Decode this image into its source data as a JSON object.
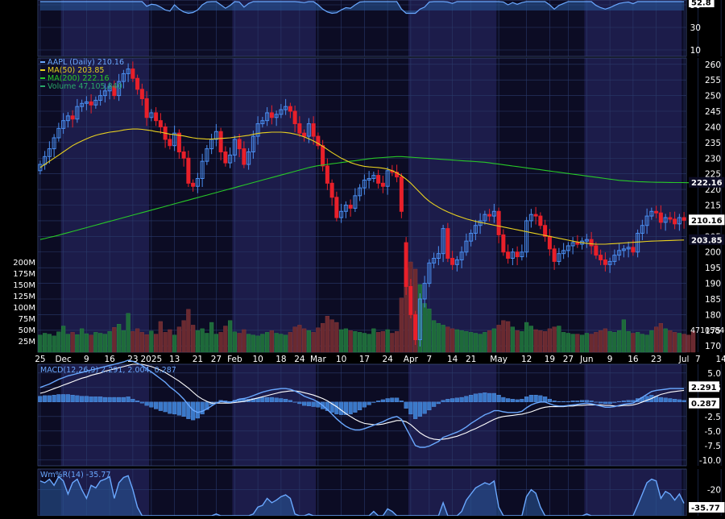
{
  "colors": {
    "background": "#000000",
    "plot_bg": "#0c0c24",
    "month_band": "#1c1c4a",
    "grid": "#2a3a6a",
    "axis_text": "#ffffff",
    "price_line": "#6aa8ff",
    "candle_up": "#4a8ef0",
    "candle_down": "#e8202a",
    "ma50": "#e8d020",
    "ma200": "#28c828",
    "volume_up": "#1e6a3a",
    "volume_down": "#6a2a30",
    "macd_line": "#6aa8ff",
    "signal_line": "#ffffff",
    "histogram": "#3a78c8",
    "label_box_bg": "#ffffff",
    "label_box_text": "#000000"
  },
  "x_axis": {
    "ticks": [
      {
        "i": 0,
        "label": "25"
      },
      {
        "i": 5,
        "label": "Dec"
      },
      {
        "i": 10,
        "label": "9"
      },
      {
        "i": 15,
        "label": "16"
      },
      {
        "i": 20,
        "label": "23"
      },
      {
        "i": 24,
        "label": "2025"
      },
      {
        "i": 29,
        "label": "13"
      },
      {
        "i": 34,
        "label": "21"
      },
      {
        "i": 38,
        "label": "27"
      },
      {
        "i": 42,
        "label": "Feb"
      },
      {
        "i": 47,
        "label": "10"
      },
      {
        "i": 52,
        "label": "18"
      },
      {
        "i": 56,
        "label": "24"
      },
      {
        "i": 60,
        "label": "Mar"
      },
      {
        "i": 65,
        "label": "10"
      },
      {
        "i": 70,
        "label": "17"
      },
      {
        "i": 75,
        "label": "24"
      },
      {
        "i": 80,
        "label": "Apr"
      },
      {
        "i": 84,
        "label": "7"
      },
      {
        "i": 89,
        "label": "14"
      },
      {
        "i": 93,
        "label": "21"
      },
      {
        "i": 99,
        "label": "May"
      },
      {
        "i": 105,
        "label": "12"
      },
      {
        "i": 110,
        "label": "19"
      },
      {
        "i": 114,
        "label": "27"
      },
      {
        "i": 118,
        "label": "Jun"
      },
      {
        "i": 123,
        "label": "9"
      },
      {
        "i": 128,
        "label": "16"
      },
      {
        "i": 133,
        "label": "23"
      },
      {
        "i": 139,
        "label": "Jul"
      },
      {
        "i": 142,
        "label": "7"
      },
      {
        "i": 147,
        "label": "14"
      }
    ],
    "month_bands": [
      [
        5,
        23
      ],
      [
        42,
        59
      ],
      [
        80,
        98
      ],
      [
        118,
        138
      ]
    ]
  },
  "top_panel": {
    "ticks": [
      "50",
      "30",
      "10"
    ],
    "last_label": "52.8"
  },
  "price_panel": {
    "legend": [
      {
        "text": "AAPL (Daily) 210.16",
        "color": "#6aa8ff"
      },
      {
        "text": "MA(50) 203.85",
        "color": "#e8d020"
      },
      {
        "text": "MA(200) 222.16",
        "color": "#28c828"
      },
      {
        "text": "Volume 47,105,840",
        "color": "#2aa86a"
      }
    ],
    "ticks": [
      "260",
      "255",
      "250",
      "245",
      "240",
      "235",
      "230",
      "225",
      "220",
      "215",
      "210",
      "205",
      "200",
      "195",
      "190",
      "185",
      "180",
      "175",
      "170"
    ],
    "last_price_label": "210.16",
    "ma200_label": "222.16",
    "ma50_label": "203.85",
    "volume_label": "47105840",
    "volume_ticks": [
      "200M",
      "175M",
      "150M",
      "125M",
      "100M",
      "75M",
      "50M",
      "25M"
    ]
  },
  "macd_panel": {
    "legend": "MACD(12,26,9) 2.291, 2.004, 0.287",
    "ticks": [
      "5.0",
      "2.5",
      "-2.5",
      "-5.0",
      "-7.5",
      "-10.0"
    ],
    "macd_label": "2.291",
    "hist_label": "0.287"
  },
  "willr_panel": {
    "legend": "Wm%R(14) -35.77",
    "ticks": [
      "-20"
    ],
    "last_label": "-35.77"
  },
  "chart_data": {
    "type": "candlestick",
    "symbol": "AAPL",
    "period": "Daily",
    "title": "AAPL (Daily) 210.16",
    "ylim": [
      168,
      262
    ],
    "close": [
      228.0,
      230.5,
      233.0,
      236.5,
      239.5,
      242.0,
      243.5,
      242.5,
      246.5,
      247.5,
      248.0,
      247.0,
      248.5,
      250.0,
      251.5,
      253.0,
      250.0,
      254.5,
      257.0,
      258.5,
      255.5,
      252.0,
      249.0,
      243.0,
      244.5,
      242.0,
      240.0,
      236.0,
      234.0,
      238.0,
      232.0,
      230.0,
      222.0,
      221.0,
      223.5,
      229.0,
      233.0,
      236.0,
      238.5,
      232.0,
      228.5,
      231.0,
      236.0,
      233.0,
      228.0,
      232.0,
      237.0,
      241.0,
      242.0,
      244.5,
      243.0,
      244.0,
      245.5,
      246.5,
      245.0,
      241.0,
      238.0,
      237.0,
      241.0,
      237.0,
      234.0,
      227.5,
      222.0,
      217.5,
      211.0,
      213.0,
      215.0,
      214.0,
      218.0,
      220.5,
      223.0,
      223.5,
      224.5,
      222.0,
      221.0,
      226.0,
      225.5,
      224.0,
      213.0,
      189.0,
      180.0,
      172.0,
      185.0,
      190.0,
      196.5,
      198.0,
      199.5,
      207.5,
      198.0,
      196.0,
      197.5,
      200.0,
      203.5,
      206.0,
      208.5,
      210.0,
      212.0,
      211.5,
      213.0,
      205.5,
      200.0,
      198.0,
      200.0,
      198.5,
      200.0,
      210.0,
      212.0,
      211.5,
      208.5,
      205.0,
      201.0,
      197.0,
      199.5,
      200.5,
      202.0,
      203.0,
      202.5,
      203.5,
      204.0,
      202.0,
      199.0,
      197.5,
      196.0,
      197.0,
      199.0,
      200.5,
      201.0,
      201.5,
      200.0,
      206.0,
      208.5,
      211.5,
      213.0,
      212.5,
      209.5,
      211.0,
      210.5,
      209.0,
      211.0,
      210.16
    ],
    "open": [
      226.0,
      228.0,
      230.5,
      233.0,
      236.5,
      239.5,
      242.0,
      243.5,
      242.5,
      246.5,
      247.5,
      248.0,
      247.0,
      248.5,
      250.0,
      251.5,
      253.0,
      250.0,
      254.5,
      257.0,
      258.5,
      255.5,
      252.0,
      249.0,
      243.0,
      244.5,
      242.0,
      240.0,
      236.0,
      234.0,
      238.0,
      232.0,
      230.0,
      222.0,
      221.0,
      223.5,
      229.0,
      233.0,
      236.0,
      238.5,
      232.0,
      228.5,
      231.0,
      236.0,
      233.0,
      228.0,
      232.0,
      237.0,
      241.0,
      242.0,
      244.5,
      243.0,
      244.0,
      245.5,
      246.5,
      245.0,
      241.0,
      238.0,
      237.0,
      241.0,
      237.0,
      234.0,
      227.5,
      222.0,
      217.5,
      211.0,
      213.0,
      215.0,
      214.0,
      218.0,
      220.5,
      223.0,
      223.5,
      224.5,
      222.0,
      221.0,
      226.0,
      225.5,
      224.0,
      203.0,
      189.0,
      180.0,
      172.0,
      185.0,
      190.0,
      196.5,
      198.0,
      199.5,
      207.5,
      198.0,
      196.0,
      197.5,
      200.0,
      203.5,
      206.0,
      208.5,
      210.0,
      212.0,
      211.5,
      213.0,
      205.5,
      200.0,
      198.0,
      200.0,
      198.5,
      200.0,
      210.0,
      212.0,
      211.5,
      208.5,
      205.0,
      201.0,
      197.0,
      199.5,
      200.5,
      202.0,
      203.0,
      202.5,
      203.5,
      204.0,
      202.0,
      199.0,
      197.5,
      196.0,
      197.0,
      199.0,
      200.5,
      201.0,
      201.5,
      200.0,
      206.0,
      208.5,
      211.5,
      213.0,
      212.5,
      209.5,
      211.0,
      210.5,
      209.0,
      211.0
    ],
    "ma50": [
      227,
      228,
      229,
      230,
      231,
      232,
      233,
      234,
      234.8,
      235.5,
      236.2,
      236.8,
      237.3,
      237.7,
      238,
      238.3,
      238.5,
      238.7,
      239,
      239.2,
      239.3,
      239.3,
      239.2,
      239,
      238.8,
      238.5,
      238.3,
      238,
      237.7,
      237.5,
      237.3,
      237.1,
      236.8,
      236.5,
      236.3,
      236.2,
      236.1,
      236.1,
      236.2,
      236.3,
      236.4,
      236.5,
      236.7,
      236.9,
      237.1,
      237.3,
      237.6,
      237.9,
      238.1,
      238.2,
      238.3,
      238.3,
      238.3,
      238.2,
      238,
      237.7,
      237.3,
      236.8,
      236.2,
      235.5,
      234.7,
      233.8,
      232.8,
      231.8,
      230.9,
      230,
      229.3,
      228.6,
      228.1,
      227.7,
      227.4,
      227.2,
      227.1,
      227,
      226.8,
      226.5,
      226,
      225.3,
      224.4,
      223.3,
      222,
      220.5,
      219,
      217.5,
      216.2,
      215.2,
      214.3,
      213.5,
      212.8,
      212.2,
      211.6,
      211.1,
      210.6,
      210.2,
      209.8,
      209.5,
      209.2,
      208.9,
      208.6,
      208.3,
      208,
      207.7,
      207.4,
      207.1,
      206.8,
      206.5,
      206.2,
      205.9,
      205.6,
      205.3,
      205,
      204.7,
      204.4,
      204.1,
      203.8,
      203.5,
      203.2,
      203,
      202.8,
      202.6,
      202.5,
      202.5,
      202.5,
      202.6,
      202.7,
      202.8,
      202.9,
      203,
      203.1,
      203.2,
      203.3,
      203.4,
      203.5,
      203.55,
      203.6,
      203.65,
      203.7,
      203.75,
      203.8,
      203.85
    ],
    "ma200": [
      204,
      204.3,
      204.7,
      205,
      205.4,
      205.8,
      206.2,
      206.6,
      207,
      207.4,
      207.8,
      208.2,
      208.6,
      209,
      209.4,
      209.8,
      210.2,
      210.6,
      211,
      211.4,
      211.8,
      212.2,
      212.6,
      213,
      213.4,
      213.8,
      214.2,
      214.6,
      215,
      215.4,
      215.8,
      216.2,
      216.6,
      217,
      217.4,
      217.8,
      218.2,
      218.6,
      219,
      219.4,
      219.8,
      220.2,
      220.6,
      221,
      221.4,
      221.8,
      222.2,
      222.6,
      223,
      223.4,
      223.8,
      224.2,
      224.6,
      225,
      225.4,
      225.8,
      226.2,
      226.6,
      227,
      227.3,
      227.6,
      227.8,
      228,
      228.2,
      228.4,
      228.6,
      228.8,
      229,
      229.2,
      229.4,
      229.6,
      229.8,
      230,
      230.1,
      230.2,
      230.3,
      230.4,
      230.5,
      230.5,
      230.4,
      230.3,
      230.2,
      230.1,
      230,
      229.9,
      229.8,
      229.7,
      229.6,
      229.5,
      229.4,
      229.3,
      229.2,
      229.1,
      229,
      228.9,
      228.8,
      228.7,
      228.5,
      228.3,
      228.1,
      227.9,
      227.7,
      227.5,
      227.3,
      227.1,
      226.9,
      226.7,
      226.5,
      226.3,
      226.1,
      225.9,
      225.7,
      225.5,
      225.3,
      225.1,
      224.9,
      224.7,
      224.5,
      224.3,
      224.1,
      223.9,
      223.7,
      223.5,
      223.3,
      223.1,
      222.9,
      222.8,
      222.7,
      222.6,
      222.5,
      222.45,
      222.4,
      222.35,
      222.3,
      222.28,
      222.26,
      222.24,
      222.22,
      222.2,
      222.18,
      222.17,
      222.16,
      222.16,
      222.16
    ],
    "volume_m": [
      38,
      42,
      40,
      36,
      45,
      58,
      40,
      44,
      39,
      52,
      41,
      38,
      44,
      42,
      40,
      46,
      55,
      62,
      48,
      86,
      46,
      52,
      44,
      39,
      47,
      40,
      68,
      44,
      50,
      38,
      56,
      70,
      95,
      60,
      48,
      52,
      42,
      66,
      40,
      44,
      58,
      70,
      45,
      42,
      50,
      40,
      38,
      36,
      40,
      44,
      48,
      42,
      40,
      38,
      44,
      56,
      60,
      52,
      48,
      44,
      54,
      64,
      80,
      72,
      66,
      50,
      52,
      48,
      46,
      44,
      42,
      40,
      52,
      44,
      46,
      50,
      42,
      46,
      120,
      186,
      200,
      184,
      150,
      108,
      96,
      70,
      64,
      60,
      56,
      52,
      50,
      48,
      46,
      44,
      42,
      40,
      44,
      48,
      52,
      60,
      70,
      68,
      56,
      48,
      46,
      66,
      58,
      50,
      48,
      46,
      52,
      56,
      58,
      44,
      42,
      40,
      40,
      38,
      42,
      40,
      44,
      48,
      52,
      46,
      44,
      48,
      72,
      46,
      42,
      44,
      40,
      38,
      48,
      56,
      64,
      52,
      48,
      44,
      42,
      40,
      38,
      47.1
    ],
    "macd": [
      2.5,
      2.8,
      3.1,
      3.5,
      3.9,
      4.2,
      4.5,
      4.7,
      4.9,
      5.1,
      5.3,
      5.5,
      5.7,
      5.9,
      6.1,
      6.3,
      6.5,
      6.7,
      6.9,
      7.2,
      7.0,
      6.7,
      6.3,
      5.7,
      5.2,
      4.6,
      4.0,
      3.4,
      2.6,
      2.0,
      1.3,
      0.5,
      -0.5,
      -1.4,
      -1.8,
      -1.6,
      -1.2,
      -0.7,
      -0.2,
      0.1,
      0.0,
      -0.1,
      0.2,
      0.5,
      0.6,
      0.8,
      1.1,
      1.4,
      1.7,
      1.9,
      2.1,
      2.2,
      2.3,
      2.3,
      2.2,
      1.9,
      1.5,
      1.0,
      0.7,
      0.4,
      0.0,
      -0.6,
      -1.3,
      -2.1,
      -2.9,
      -3.6,
      -4.2,
      -4.6,
      -4.8,
      -4.8,
      -4.6,
      -4.3,
      -4.0,
      -3.7,
      -3.4,
      -3.0,
      -2.7,
      -2.5,
      -3.0,
      -4.5,
      -6.0,
      -7.5,
      -7.8,
      -7.8,
      -7.6,
      -7.2,
      -6.8,
      -6.1,
      -5.8,
      -5.5,
      -5.2,
      -4.8,
      -4.3,
      -3.7,
      -3.2,
      -2.7,
      -2.2,
      -1.9,
      -1.5,
      -1.5,
      -1.7,
      -1.8,
      -1.8,
      -1.8,
      -1.6,
      -1.0,
      -0.5,
      -0.2,
      0.0,
      0.0,
      -0.3,
      -0.6,
      -0.7,
      -0.7,
      -0.6,
      -0.5,
      -0.4,
      -0.3,
      -0.2,
      -0.3,
      -0.5,
      -0.7,
      -0.9,
      -0.9,
      -0.8,
      -0.6,
      -0.4,
      -0.3,
      -0.2,
      0.3,
      0.8,
      1.3,
      1.8,
      2.0,
      2.1,
      2.2,
      2.3,
      2.3,
      2.3,
      2.291
    ],
    "signal": [
      1.5,
      1.7,
      2.0,
      2.3,
      2.6,
      2.9,
      3.2,
      3.5,
      3.8,
      4.1,
      4.3,
      4.6,
      4.8,
      5.0,
      5.3,
      5.5,
      5.7,
      5.9,
      6.1,
      6.3,
      6.5,
      6.5,
      6.5,
      6.3,
      6.1,
      5.8,
      5.5,
      5.1,
      4.6,
      4.1,
      3.6,
      3.0,
      2.4,
      1.7,
      1.0,
      0.5,
      0.1,
      -0.2,
      -0.2,
      -0.2,
      -0.2,
      -0.2,
      -0.1,
      0.0,
      0.1,
      0.3,
      0.5,
      0.7,
      0.9,
      1.1,
      1.3,
      1.5,
      1.7,
      1.8,
      1.9,
      1.9,
      1.8,
      1.6,
      1.4,
      1.2,
      0.9,
      0.6,
      0.2,
      -0.3,
      -0.8,
      -1.4,
      -2.0,
      -2.5,
      -3.0,
      -3.4,
      -3.7,
      -3.8,
      -3.9,
      -3.9,
      -3.8,
      -3.6,
      -3.4,
      -3.2,
      -3.2,
      -3.4,
      -3.9,
      -4.6,
      -5.3,
      -5.8,
      -6.2,
      -6.4,
      -6.5,
      -6.4,
      -6.3,
      -6.1,
      -5.9,
      -5.6,
      -5.3,
      -4.9,
      -4.6,
      -4.2,
      -3.8,
      -3.4,
      -3.0,
      -2.7,
      -2.5,
      -2.4,
      -2.3,
      -2.2,
      -2.1,
      -1.9,
      -1.7,
      -1.4,
      -1.1,
      -0.9,
      -0.8,
      -0.8,
      -0.8,
      -0.8,
      -0.7,
      -0.7,
      -0.6,
      -0.6,
      -0.5,
      -0.5,
      -0.5,
      -0.5,
      -0.6,
      -0.6,
      -0.7,
      -0.7,
      -0.6,
      -0.6,
      -0.5,
      -0.3,
      0.0,
      0.3,
      0.6,
      1.0,
      1.3,
      1.5,
      1.7,
      1.8,
      1.9,
      2.004
    ],
    "macd_ylim": [
      -11,
      6.5
    ],
    "williams_r": [
      -10,
      -12,
      -8,
      -15,
      -5,
      -10,
      -25,
      -12,
      -8,
      -20,
      -30,
      -15,
      -18,
      -10,
      -8,
      -5,
      -30,
      -12,
      -6,
      -4,
      -20,
      -40,
      -55,
      -75,
      -68,
      -70,
      -78,
      -88,
      -92,
      -70,
      -85,
      -95,
      -100,
      -97,
      -88,
      -70,
      -60,
      -55,
      -48,
      -70,
      -82,
      -72,
      -52,
      -60,
      -78,
      -65,
      -48,
      -40,
      -38,
      -30,
      -35,
      -32,
      -28,
      -26,
      -30,
      -48,
      -60,
      -62,
      -48,
      -58,
      -70,
      -85,
      -95,
      -100,
      -98,
      -88,
      -80,
      -82,
      -70,
      -60,
      -52,
      -50,
      -45,
      -55,
      -58,
      -42,
      -45,
      -50,
      -85,
      -100,
      -100,
      -100,
      -85,
      -78,
      -60,
      -55,
      -50,
      -35,
      -60,
      -65,
      -58,
      -45,
      -32,
      -25,
      -18,
      -15,
      -12,
      -14,
      -10,
      -40,
      -60,
      -70,
      -62,
      -68,
      -62,
      -28,
      -20,
      -24,
      -40,
      -55,
      -70,
      -85,
      -72,
      -65,
      -58,
      -52,
      -55,
      -50,
      -48,
      -58,
      -72,
      -80,
      -85,
      -80,
      -72,
      -65,
      -62,
      -60,
      -66,
      -38,
      -25,
      -12,
      -8,
      -10,
      -30,
      -22,
      -25,
      -32,
      -25,
      -35.77
    ],
    "willr_ylim": [
      -50,
      0
    ]
  }
}
